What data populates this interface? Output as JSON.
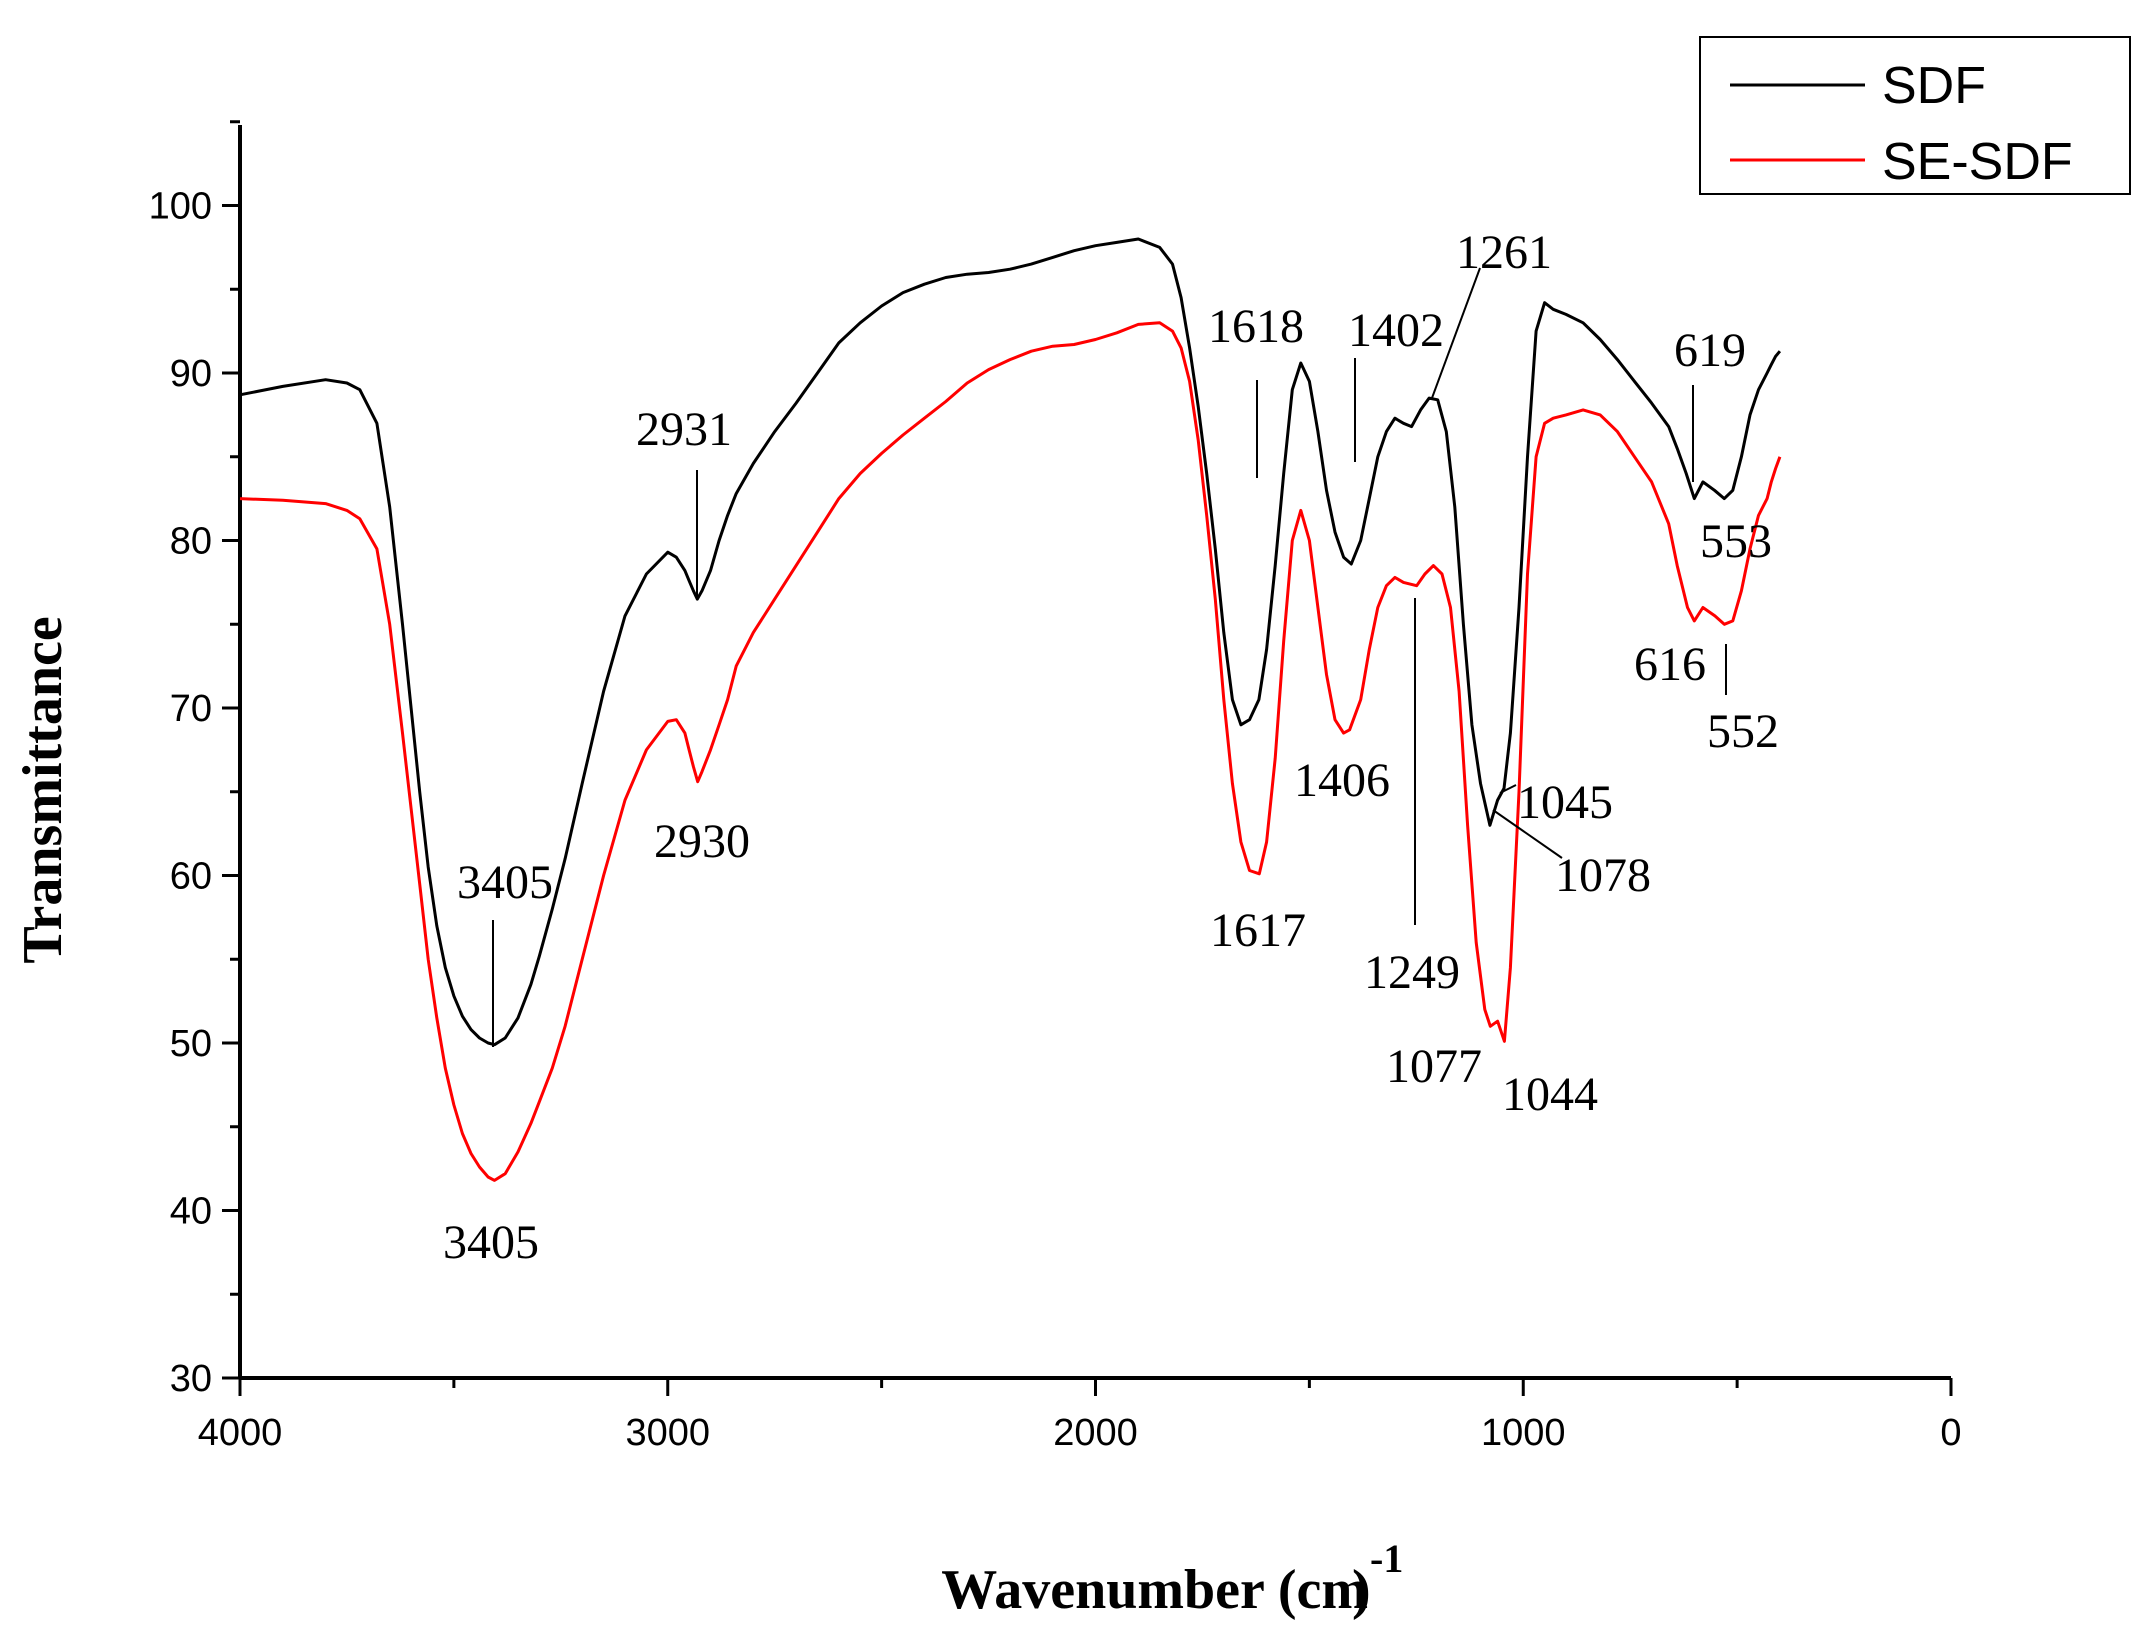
{
  "chart_data": {
    "type": "line",
    "title": "",
    "xlabel": "Wavenumber (cm",
    "xlabel_sup": "-1",
    "xlabel_close": ")",
    "ylabel": "Transmittance",
    "xlim": [
      4000,
      0
    ],
    "ylim": [
      30,
      105
    ],
    "x_ticks": [
      4000,
      3000,
      2000,
      1000,
      0
    ],
    "y_ticks": [
      30,
      40,
      50,
      60,
      70,
      80,
      90,
      100
    ],
    "legend_position": "top-right",
    "series": [
      {
        "name": "SDF",
        "color": "#000000",
        "x": [
          4000,
          3900,
          3800,
          3750,
          3720,
          3680,
          3650,
          3620,
          3600,
          3580,
          3560,
          3540,
          3520,
          3500,
          3480,
          3460,
          3440,
          3420,
          3405,
          3380,
          3350,
          3320,
          3300,
          3270,
          3240,
          3200,
          3150,
          3100,
          3050,
          3000,
          2980,
          2960,
          2950,
          2940,
          2931,
          2920,
          2900,
          2880,
          2860,
          2840,
          2800,
          2750,
          2700,
          2650,
          2600,
          2550,
          2500,
          2450,
          2400,
          2350,
          2300,
          2250,
          2200,
          2150,
          2100,
          2050,
          2000,
          1950,
          1900,
          1850,
          1820,
          1800,
          1780,
          1760,
          1740,
          1720,
          1700,
          1680,
          1660,
          1640,
          1618,
          1600,
          1580,
          1560,
          1540,
          1520,
          1500,
          1480,
          1460,
          1440,
          1420,
          1402,
          1380,
          1360,
          1340,
          1320,
          1300,
          1280,
          1261,
          1240,
          1220,
          1200,
          1180,
          1160,
          1140,
          1120,
          1100,
          1078,
          1060,
          1045,
          1030,
          1010,
          990,
          970,
          950,
          930,
          900,
          860,
          820,
          780,
          740,
          700,
          660,
          640,
          619,
          600,
          580,
          553,
          530,
          510,
          490,
          470,
          450,
          430,
          420,
          410,
          400
        ],
        "y": [
          88.7,
          89.2,
          89.6,
          89.4,
          89.0,
          87.0,
          82.0,
          75.0,
          70.0,
          65.0,
          60.5,
          57.0,
          54.5,
          52.8,
          51.6,
          50.8,
          50.3,
          50.0,
          49.9,
          50.3,
          51.5,
          53.5,
          55.2,
          58.0,
          61.0,
          65.5,
          71.0,
          75.5,
          78.0,
          79.3,
          79.0,
          78.2,
          77.6,
          77.0,
          76.5,
          77.0,
          78.2,
          80.0,
          81.5,
          82.8,
          84.6,
          86.5,
          88.2,
          90.0,
          91.8,
          93.0,
          94.0,
          94.8,
          95.3,
          95.7,
          95.9,
          96.0,
          96.2,
          96.5,
          96.9,
          97.3,
          97.6,
          97.8,
          98.0,
          97.5,
          96.5,
          94.5,
          91.5,
          88.0,
          84.0,
          79.5,
          74.5,
          70.5,
          69.0,
          69.3,
          70.5,
          73.5,
          78.5,
          84.0,
          89.0,
          90.6,
          89.5,
          86.5,
          83.0,
          80.5,
          79.0,
          78.6,
          80.0,
          82.5,
          85.0,
          86.5,
          87.3,
          87.0,
          86.8,
          87.8,
          88.5,
          88.4,
          86.5,
          82.0,
          75.0,
          69.0,
          65.5,
          63.0,
          64.5,
          65.2,
          68.5,
          76.0,
          85.0,
          92.5,
          94.2,
          93.8,
          93.5,
          93.0,
          92.0,
          90.8,
          89.5,
          88.2,
          86.8,
          85.5,
          84.0,
          82.5,
          83.5,
          83.0,
          82.5,
          83.0,
          85.0,
          87.5,
          89.0,
          90.0,
          90.5,
          91.0,
          91.3
        ]
      },
      {
        "name": "SE-SDF",
        "color": "#ff0000",
        "x": [
          4000,
          3900,
          3800,
          3750,
          3720,
          3680,
          3650,
          3620,
          3600,
          3580,
          3560,
          3540,
          3520,
          3500,
          3480,
          3460,
          3440,
          3420,
          3405,
          3380,
          3350,
          3320,
          3300,
          3270,
          3240,
          3200,
          3150,
          3100,
          3050,
          3000,
          2980,
          2960,
          2950,
          2940,
          2930,
          2920,
          2900,
          2880,
          2860,
          2840,
          2800,
          2750,
          2700,
          2650,
          2600,
          2550,
          2500,
          2450,
          2400,
          2350,
          2300,
          2250,
          2200,
          2150,
          2100,
          2050,
          2000,
          1950,
          1900,
          1850,
          1820,
          1800,
          1780,
          1760,
          1740,
          1720,
          1700,
          1680,
          1660,
          1640,
          1617,
          1600,
          1580,
          1560,
          1540,
          1520,
          1500,
          1480,
          1460,
          1440,
          1420,
          1406,
          1380,
          1360,
          1340,
          1320,
          1300,
          1280,
          1249,
          1230,
          1210,
          1190,
          1170,
          1150,
          1130,
          1110,
          1090,
          1077,
          1060,
          1044,
          1030,
          1010,
          990,
          970,
          950,
          930,
          900,
          860,
          820,
          780,
          740,
          700,
          660,
          640,
          616,
          600,
          580,
          552,
          530,
          510,
          490,
          470,
          450,
          430,
          420,
          410,
          400
        ],
        "y": [
          82.5,
          82.4,
          82.2,
          81.8,
          81.3,
          79.5,
          75.0,
          68.5,
          64.0,
          59.5,
          55.0,
          51.5,
          48.5,
          46.3,
          44.6,
          43.4,
          42.6,
          42.0,
          41.8,
          42.2,
          43.5,
          45.2,
          46.5,
          48.5,
          51.0,
          55.0,
          60.0,
          64.5,
          67.5,
          69.2,
          69.3,
          68.5,
          67.5,
          66.5,
          65.6,
          66.2,
          67.5,
          69.0,
          70.5,
          72.5,
          74.5,
          76.5,
          78.5,
          80.5,
          82.5,
          84.0,
          85.2,
          86.3,
          87.3,
          88.3,
          89.4,
          90.2,
          90.8,
          91.3,
          91.6,
          91.7,
          92.0,
          92.4,
          92.9,
          93.0,
          92.5,
          91.5,
          89.5,
          86.0,
          81.5,
          76.5,
          70.5,
          65.5,
          62.0,
          60.3,
          60.1,
          62.0,
          67.0,
          74.0,
          80.0,
          81.8,
          80.0,
          76.0,
          72.0,
          69.3,
          68.5,
          68.7,
          70.5,
          73.5,
          76.0,
          77.3,
          77.8,
          77.5,
          77.3,
          78.0,
          78.5,
          78.0,
          76.0,
          71.0,
          63.0,
          56.0,
          52.0,
          51.0,
          51.3,
          50.1,
          54.5,
          65.0,
          78.0,
          85.0,
          87.0,
          87.3,
          87.5,
          87.8,
          87.5,
          86.5,
          85.0,
          83.5,
          81.0,
          78.5,
          76.0,
          75.2,
          76.0,
          75.5,
          75.0,
          75.2,
          77.0,
          79.5,
          81.5,
          82.5,
          83.5,
          84.3,
          85.0
        ]
      }
    ],
    "annotations": [
      {
        "text": "3405",
        "series": "SDF"
      },
      {
        "text": "2931",
        "series": "SDF"
      },
      {
        "text": "1618",
        "series": "SDF"
      },
      {
        "text": "1402",
        "series": "SDF"
      },
      {
        "text": "1261",
        "series": "SDF"
      },
      {
        "text": "1078",
        "series": "SDF"
      },
      {
        "text": "1045",
        "series": "SDF"
      },
      {
        "text": "619",
        "series": "SDF"
      },
      {
        "text": "553",
        "series": "SDF"
      },
      {
        "text": "3405",
        "series": "SE-SDF"
      },
      {
        "text": "2930",
        "series": "SE-SDF"
      },
      {
        "text": "1617",
        "series": "SE-SDF"
      },
      {
        "text": "1406",
        "series": "SE-SDF"
      },
      {
        "text": "1249",
        "series": "SE-SDF"
      },
      {
        "text": "1077",
        "series": "SE-SDF"
      },
      {
        "text": "1044",
        "series": "SE-SDF"
      },
      {
        "text": "616",
        "series": "SE-SDF"
      },
      {
        "text": "552",
        "series": "SE-SDF"
      }
    ]
  }
}
